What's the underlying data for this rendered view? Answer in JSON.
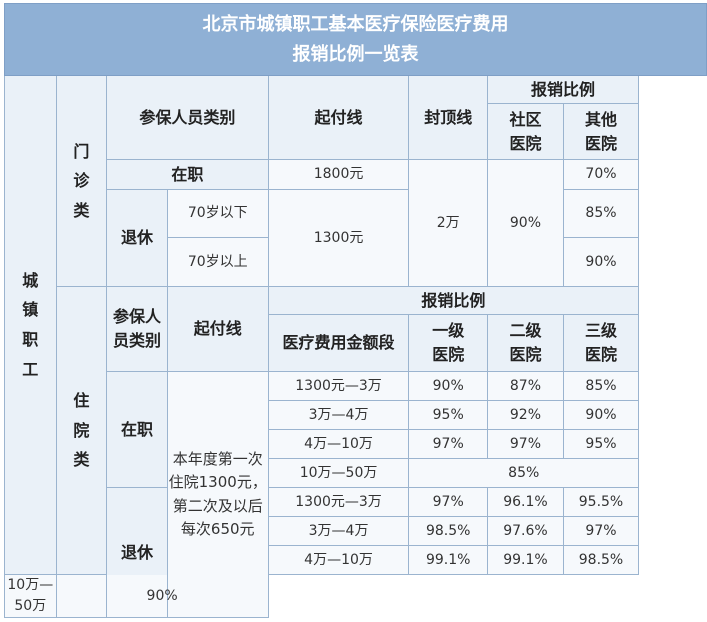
{
  "title": {
    "line1": "北京市城镇职工基本医疗保险医疗费用",
    "line2": "报销比例一览表"
  },
  "group": {
    "c1": "城",
    "c2": "镇",
    "c3": "职",
    "c4": "工"
  },
  "outpatient": {
    "label": {
      "c1": "门",
      "c2": "诊",
      "c3": "类"
    },
    "header": {
      "category": "参保人员类别",
      "deductible": "起付线",
      "cap": "封顶线",
      "ratio": "报销比例",
      "community": {
        "l1": "社区",
        "l2": "医院"
      },
      "other": {
        "l1": "其他",
        "l2": "医院"
      }
    },
    "employed": {
      "label": "在职",
      "deductible": "1800元",
      "other": "70%"
    },
    "retired": {
      "label": "退休",
      "under70": {
        "label": "70岁以下",
        "other": "85%"
      },
      "over70": {
        "label": "70岁以上",
        "other": "90%"
      },
      "deductible": "1300元"
    },
    "cap_value": "2万",
    "community_value": "90%"
  },
  "inpatient": {
    "label": {
      "c1": "住",
      "c2": "院",
      "c3": "类"
    },
    "header": {
      "category": {
        "l1": "参保人",
        "l2": "员类别"
      },
      "deductible": "起付线",
      "ratio": "报销比例",
      "amount": "医疗费用金额段",
      "lv1": {
        "l1": "一级",
        "l2": "医院"
      },
      "lv2": {
        "l1": "二级",
        "l2": "医院"
      },
      "lv3": {
        "l1": "三级",
        "l2": "医院"
      }
    },
    "deductible_text": "本年度第一次住院1300元，第二次及以后每次650元",
    "employed": {
      "label": "在职",
      "rows": [
        {
          "range": "1300元—3万",
          "l1": "90%",
          "l2": "87%",
          "l3": "85%"
        },
        {
          "range": "3万—4万",
          "l1": "95%",
          "l2": "92%",
          "l3": "90%"
        },
        {
          "range": "4万—10万",
          "l1": "97%",
          "l2": "97%",
          "l3": "95%"
        }
      ],
      "last": {
        "range": "10万—50万",
        "all": "85%"
      }
    },
    "retired": {
      "label": "退休",
      "rows": [
        {
          "range": "1300元—3万",
          "l1": "97%",
          "l2": "96.1%",
          "l3": "95.5%"
        },
        {
          "range": "3万—4万",
          "l1": "98.5%",
          "l2": "97.6%",
          "l3": "97%"
        },
        {
          "range": "4万—10万",
          "l1": "99.1%",
          "l2": "99.1%",
          "l3": "98.5%"
        }
      ],
      "last": {
        "range": "10万—50万",
        "all": "90%"
      }
    }
  }
}
